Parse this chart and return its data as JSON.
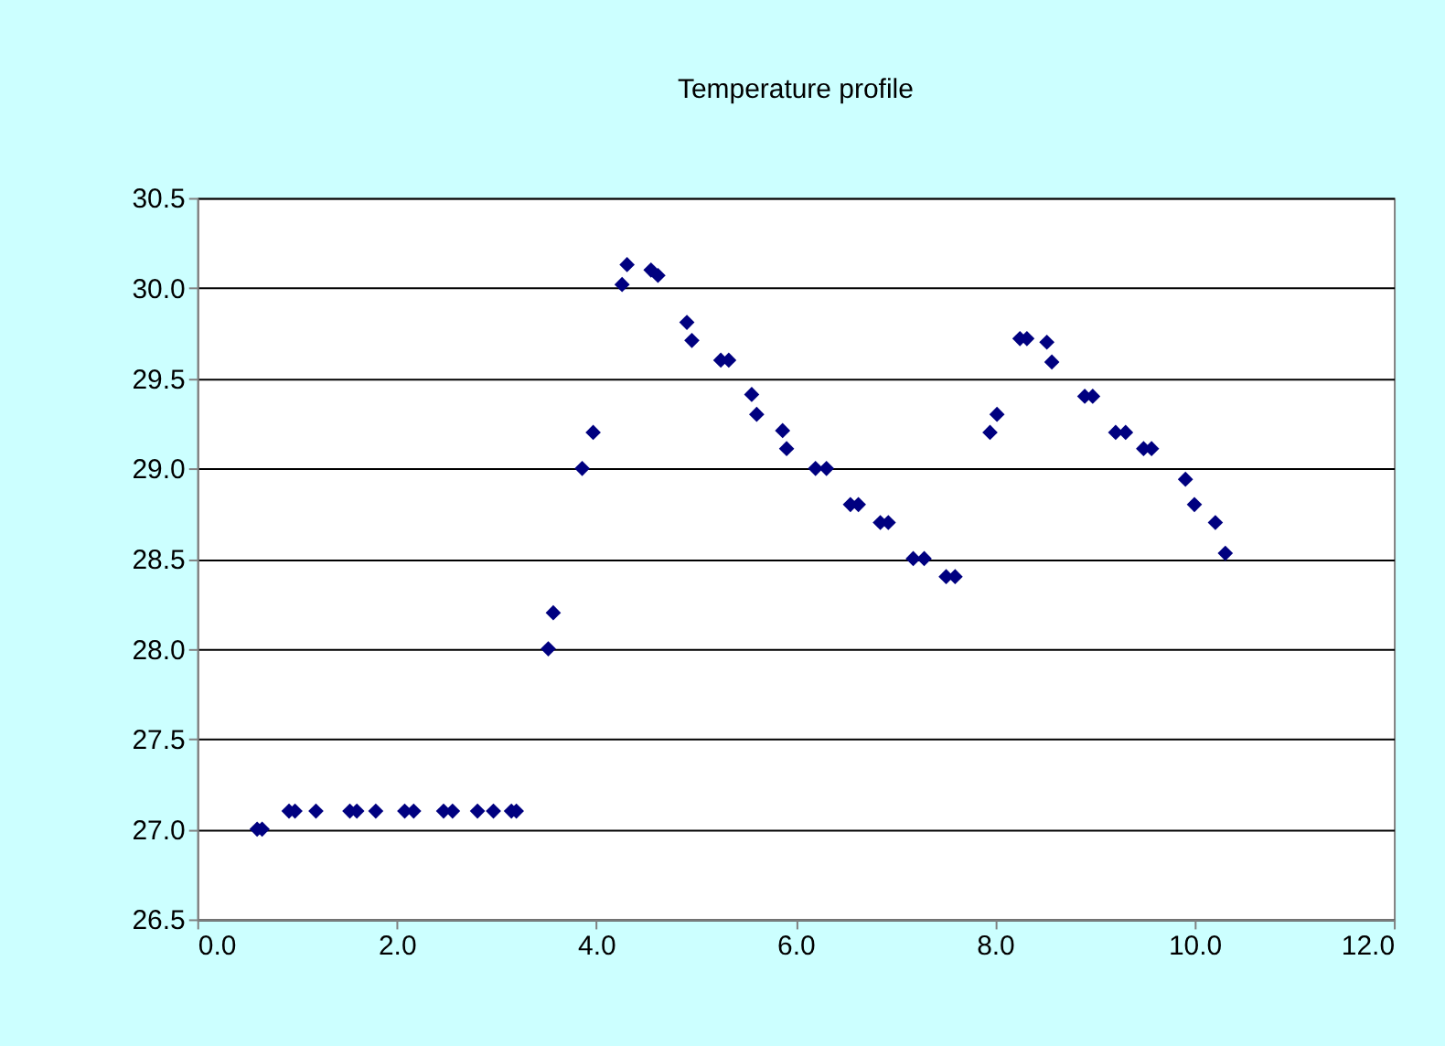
{
  "chart_data": {
    "type": "scatter",
    "title": "Temperature profile",
    "x": [
      0.6,
      0.65,
      0.92,
      0.98,
      1.19,
      1.53,
      1.6,
      1.79,
      2.08,
      2.17,
      2.47,
      2.56,
      2.81,
      2.97,
      3.15,
      3.2,
      3.52,
      3.57,
      3.86,
      3.97,
      4.26,
      4.31,
      4.55,
      4.62,
      4.91,
      4.96,
      5.25,
      5.33,
      5.56,
      5.61,
      5.87,
      5.91,
      6.2,
      6.31,
      6.55,
      6.63,
      6.85,
      6.93,
      7.18,
      7.29,
      7.51,
      7.6,
      7.95,
      8.02,
      8.25,
      8.32,
      8.52,
      8.57,
      8.9,
      8.98,
      9.21,
      9.31,
      9.49,
      9.57,
      9.91,
      10.0,
      10.21,
      10.31
    ],
    "series": [
      {
        "color": "#000080",
        "values": [
          27.0,
          27.0,
          27.1,
          27.1,
          27.1,
          27.1,
          27.1,
          27.1,
          27.1,
          27.1,
          27.1,
          27.1,
          27.1,
          27.1,
          27.1,
          27.1,
          28.0,
          28.2,
          29.0,
          29.2,
          30.02,
          30.13,
          30.1,
          30.07,
          29.81,
          29.71,
          29.6,
          29.6,
          29.41,
          29.3,
          29.21,
          29.11,
          29.0,
          29.0,
          28.8,
          28.8,
          28.7,
          28.7,
          28.5,
          28.5,
          28.4,
          28.4,
          29.2,
          29.3,
          29.72,
          29.72,
          29.7,
          29.59,
          29.4,
          29.4,
          29.2,
          29.2,
          29.11,
          29.11,
          28.94,
          28.8,
          28.7,
          28.53
        ]
      }
    ],
    "xlim": [
      0,
      12
    ],
    "xticks": [
      {
        "value": 0,
        "label": "0.0"
      },
      {
        "value": 2,
        "label": "2.0"
      },
      {
        "value": 4,
        "label": "4.0"
      },
      {
        "value": 6,
        "label": "6.0"
      },
      {
        "value": 8,
        "label": "8.0"
      },
      {
        "value": 10,
        "label": "10.0"
      },
      {
        "value": 12,
        "label": "12.0"
      }
    ],
    "ylim": [
      26.5,
      30.5
    ],
    "yticks": [
      26.5,
      {
        "value": 27,
        "label": "27.0"
      },
      27.5,
      {
        "value": 28,
        "label": "28.0"
      },
      28.5,
      {
        "value": 29,
        "label": "29.0"
      },
      29.5,
      {
        "value": 30,
        "label": "30.0"
      },
      30.5
    ],
    "grid": "y",
    "marker": "diamond"
  }
}
